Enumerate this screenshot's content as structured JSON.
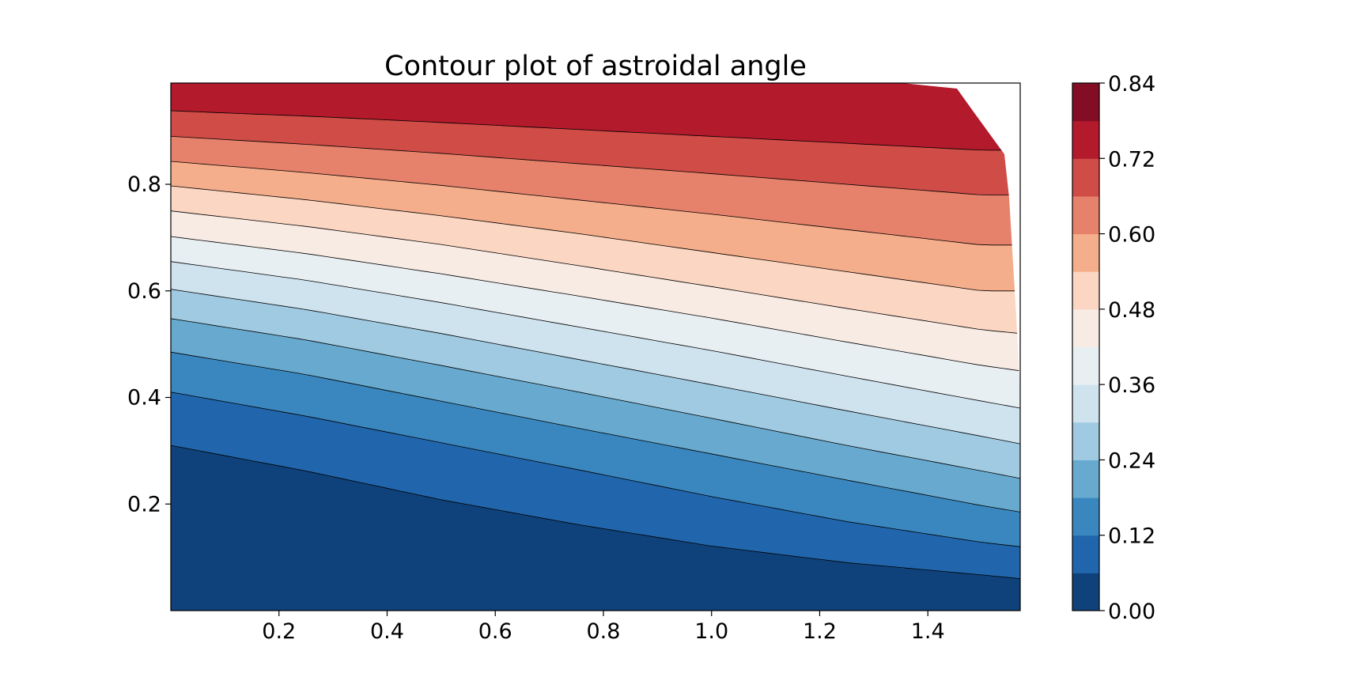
{
  "chart_data": {
    "type": "contour",
    "title": "Contour plot of astroidal angle",
    "xlabel": "",
    "ylabel": "",
    "xlim": [
      0.0,
      1.5708
    ],
    "ylim": [
      0.0,
      0.99
    ],
    "x_ticks": [
      0.2,
      0.4,
      0.6,
      0.8,
      1.0,
      1.2,
      1.4
    ],
    "x_tick_labels": [
      "0.2",
      "0.4",
      "0.6",
      "0.8",
      "1.0",
      "1.2",
      "1.4"
    ],
    "y_ticks": [
      0.2,
      0.4,
      0.6,
      0.8
    ],
    "y_tick_labels": [
      "0.2",
      "0.4",
      "0.6",
      "0.8"
    ],
    "grid": false,
    "colormap": "RdBu_r",
    "levels": [
      0.0,
      0.06,
      0.12,
      0.18,
      0.24,
      0.3,
      0.36,
      0.42,
      0.48,
      0.54,
      0.6,
      0.66,
      0.72,
      0.78,
      0.84
    ],
    "level_colors": [
      "#0f427a",
      "#2166ac",
      "#3a87bf",
      "#68aacf",
      "#9fcae1",
      "#cfe3ef",
      "#e8eff3",
      "#f8ebe4",
      "#fbd6c3",
      "#f5ae8b",
      "#e6826b",
      "#cf4c47",
      "#b31a2c",
      "#830d24"
    ],
    "contour_lines": [
      {
        "level": 0.06,
        "x": [
          0.0,
          0.25,
          0.5,
          0.75,
          1.0,
          1.25,
          1.5,
          1.5708
        ],
        "y": [
          0.31,
          0.262,
          0.208,
          0.162,
          0.121,
          0.09,
          0.067,
          0.06
        ]
      },
      {
        "level": 0.12,
        "x": [
          0.0,
          0.25,
          0.5,
          0.75,
          1.0,
          1.25,
          1.5,
          1.5708
        ],
        "y": [
          0.41,
          0.365,
          0.315,
          0.265,
          0.214,
          0.167,
          0.128,
          0.12
        ]
      },
      {
        "level": 0.18,
        "x": [
          0.0,
          0.25,
          0.5,
          0.75,
          1.0,
          1.25,
          1.5,
          1.5708
        ],
        "y": [
          0.485,
          0.443,
          0.393,
          0.343,
          0.294,
          0.245,
          0.197,
          0.185
        ]
      },
      {
        "level": 0.24,
        "x": [
          0.0,
          0.25,
          0.5,
          0.75,
          1.0,
          1.25,
          1.5,
          1.5708
        ],
        "y": [
          0.548,
          0.508,
          0.46,
          0.411,
          0.361,
          0.31,
          0.262,
          0.248
        ]
      },
      {
        "level": 0.3,
        "x": [
          0.0,
          0.25,
          0.5,
          0.75,
          1.0,
          1.25,
          1.5,
          1.5708
        ],
        "y": [
          0.603,
          0.565,
          0.52,
          0.472,
          0.424,
          0.375,
          0.327,
          0.313
        ]
      },
      {
        "level": 0.36,
        "x": [
          0.0,
          0.25,
          0.5,
          0.75,
          1.0,
          1.25,
          1.5,
          1.5708
        ],
        "y": [
          0.655,
          0.62,
          0.578,
          0.533,
          0.488,
          0.44,
          0.393,
          0.38
        ]
      },
      {
        "level": 0.42,
        "x": [
          0.0,
          0.25,
          0.5,
          0.75,
          1.0,
          1.25,
          1.5,
          1.5708
        ],
        "y": [
          0.702,
          0.67,
          0.632,
          0.591,
          0.549,
          0.504,
          0.46,
          0.45
        ]
      },
      {
        "level": 0.48,
        "x": [
          0.0,
          0.25,
          0.5,
          0.75,
          1.0,
          1.25,
          1.5,
          1.5708
        ],
        "y": [
          0.75,
          0.721,
          0.687,
          0.648,
          0.608,
          0.567,
          0.527,
          0.52
        ]
      },
      {
        "level": 0.54,
        "x": [
          0.0,
          0.25,
          0.5,
          0.75,
          1.0,
          1.25,
          1.5,
          1.5708
        ],
        "y": [
          0.797,
          0.771,
          0.741,
          0.708,
          0.672,
          0.636,
          0.6,
          0.6
        ]
      },
      {
        "level": 0.6,
        "x": [
          0.0,
          0.25,
          0.5,
          0.75,
          1.0,
          1.25,
          1.5,
          1.5708
        ],
        "y": [
          0.843,
          0.822,
          0.798,
          0.771,
          0.744,
          0.715,
          0.686,
          0.686
        ]
      },
      {
        "level": 0.66,
        "x": [
          0.0,
          0.25,
          0.5,
          0.75,
          1.0,
          1.25,
          1.5,
          1.5708
        ],
        "y": [
          0.89,
          0.875,
          0.858,
          0.839,
          0.82,
          0.8,
          0.78,
          0.78
        ]
      },
      {
        "level": 0.72,
        "x": [
          0.0,
          0.25,
          0.5,
          0.75,
          1.0,
          1.25,
          1.5,
          1.5708
        ],
        "y": [
          0.938,
          0.928,
          0.916,
          0.903,
          0.89,
          0.877,
          0.864,
          0.864
        ]
      }
    ],
    "masked_region": "top-right corner (near x = 1.5708, y > 0.86) left blank",
    "colorbar": {
      "ticks": [
        0.0,
        0.12,
        0.24,
        0.36,
        0.48,
        0.6,
        0.72,
        0.84
      ],
      "tick_labels": [
        "0.00",
        "0.12",
        "0.24",
        "0.36",
        "0.48",
        "0.60",
        "0.72",
        "0.84"
      ],
      "placement": "right"
    }
  }
}
